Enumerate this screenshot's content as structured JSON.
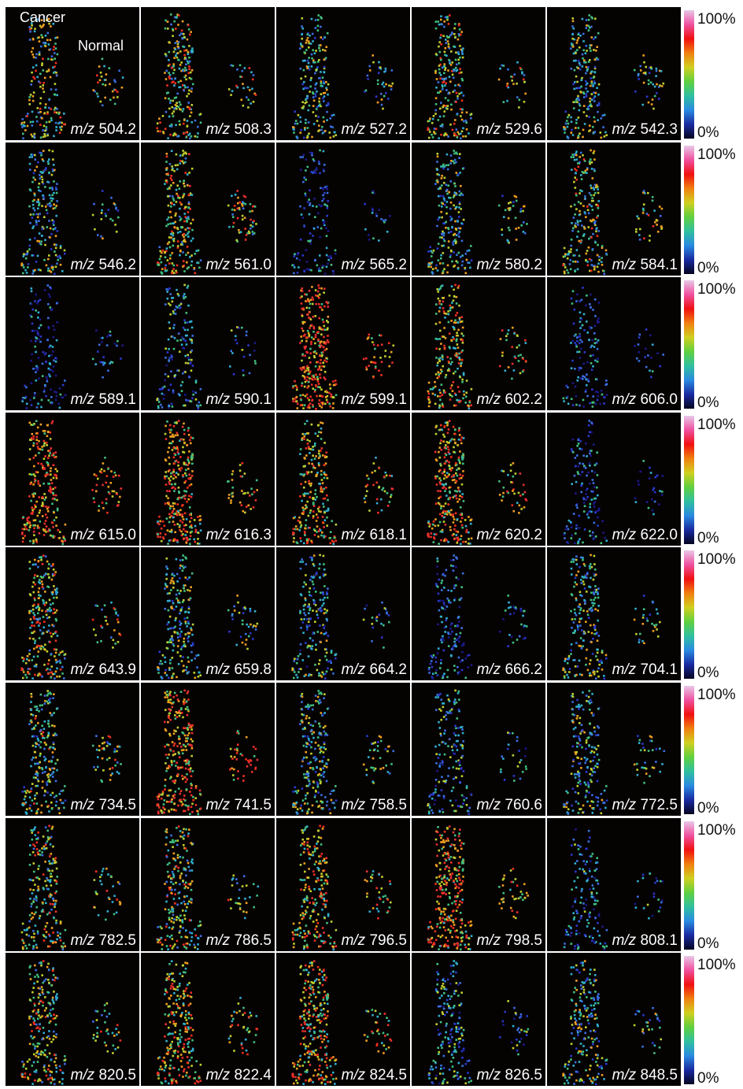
{
  "annotations": {
    "cancer": "Cancer",
    "normal": "Normal"
  },
  "mz_prefix": "m/z",
  "colorbar": {
    "max_label": "100%",
    "min_label": "0%",
    "stops": [
      "#050520",
      "#1a2aa0",
      "#2a8ae0",
      "#30c0a0",
      "#60d040",
      "#d0d020",
      "#f08010",
      "#f01010",
      "#f050a0",
      "#e8c8e8"
    ]
  },
  "rows": [
    [
      "504.2",
      "508.3",
      "527.2",
      "529.6",
      "542.3"
    ],
    [
      "546.2",
      "561.0",
      "565.2",
      "580.2",
      "584.1"
    ],
    [
      "589.1",
      "590.1",
      "599.1",
      "602.2",
      "606.0"
    ],
    [
      "615.0",
      "616.3",
      "618.1",
      "620.2",
      "622.0"
    ],
    [
      "643.9",
      "659.8",
      "664.2",
      "666.2",
      "704.1"
    ],
    [
      "734.5",
      "741.5",
      "758.5",
      "760.6",
      "772.5"
    ],
    [
      "782.5",
      "786.5",
      "796.5",
      "798.5",
      "808.1"
    ],
    [
      "820.5",
      "822.4",
      "824.5",
      "826.5",
      "848.5"
    ]
  ],
  "intensity": [
    [
      0.55,
      0.55,
      0.45,
      0.55,
      0.45
    ],
    [
      0.4,
      0.65,
      0.12,
      0.45,
      0.55
    ],
    [
      0.1,
      0.3,
      0.9,
      0.7,
      0.15
    ],
    [
      0.85,
      0.8,
      0.7,
      0.75,
      0.12
    ],
    [
      0.6,
      0.45,
      0.35,
      0.15,
      0.45
    ],
    [
      0.5,
      0.85,
      0.45,
      0.3,
      0.4
    ],
    [
      0.6,
      0.55,
      0.7,
      0.8,
      0.2
    ],
    [
      0.55,
      0.7,
      0.7,
      0.3,
      0.4
    ]
  ]
}
